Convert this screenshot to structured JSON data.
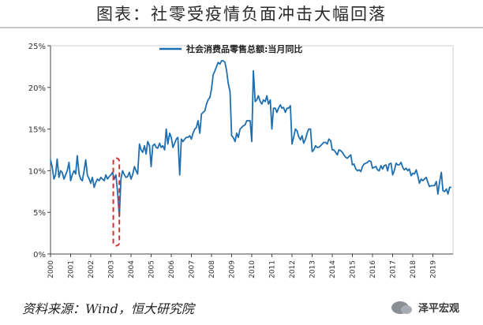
{
  "title": "图表：社零受疫情负面冲击大幅回落",
  "source": "资料来源：Wind，恒大研究院",
  "watermark": "泽平宏观",
  "colors": {
    "series": "#1f6fb0",
    "highlight": "#d0312d",
    "axis": "#444444"
  },
  "chart_data": {
    "type": "line",
    "title": "",
    "xlabel": "",
    "ylabel": "",
    "xlim": [
      2000,
      2020
    ],
    "ylim": [
      0,
      0.25
    ],
    "yticks": [
      0,
      0.05,
      0.1,
      0.15,
      0.2,
      0.25
    ],
    "ytick_labels": [
      "0%",
      "5%",
      "10%",
      "15%",
      "20%",
      "25%"
    ],
    "xticks": [
      2000,
      2001,
      2002,
      2003,
      2004,
      2005,
      2006,
      2007,
      2008,
      2009,
      2010,
      2011,
      2012,
      2013,
      2014,
      2015,
      2016,
      2017,
      2018,
      2019
    ],
    "xtick_labels": [
      "2000",
      "2001",
      "2002",
      "2003",
      "2004",
      "2005",
      "2006",
      "2007",
      "2008",
      "2009",
      "2010",
      "2011",
      "2012",
      "2013",
      "2014",
      "2015",
      "2016",
      "2017",
      "2018",
      "2019"
    ],
    "grid": false,
    "legend": "top-center",
    "highlight_box": {
      "x0": 2003.12,
      "x1": 2003.42,
      "y0": 0.01,
      "y1": 0.115
    },
    "series": [
      {
        "name": "社会消费品零售总额:当月同比",
        "x": [
          2000.0,
          2000.08,
          2000.17,
          2000.25,
          2000.33,
          2000.42,
          2000.5,
          2000.58,
          2000.67,
          2000.75,
          2000.83,
          2000.92,
          2001.0,
          2001.08,
          2001.17,
          2001.25,
          2001.33,
          2001.42,
          2001.5,
          2001.58,
          2001.67,
          2001.75,
          2001.83,
          2001.92,
          2002.0,
          2002.08,
          2002.17,
          2002.25,
          2002.33,
          2002.42,
          2002.5,
          2002.58,
          2002.67,
          2002.75,
          2002.83,
          2002.92,
          2003.0,
          2003.08,
          2003.17,
          2003.25,
          2003.33,
          2003.42,
          2003.5,
          2003.58,
          2003.67,
          2003.75,
          2003.83,
          2003.92,
          2004.0,
          2004.08,
          2004.17,
          2004.25,
          2004.33,
          2004.42,
          2004.5,
          2004.58,
          2004.67,
          2004.75,
          2004.83,
          2004.92,
          2005.0,
          2005.08,
          2005.17,
          2005.25,
          2005.33,
          2005.42,
          2005.5,
          2005.58,
          2005.67,
          2005.75,
          2005.83,
          2005.92,
          2006.0,
          2006.08,
          2006.17,
          2006.25,
          2006.33,
          2006.42,
          2006.5,
          2006.58,
          2006.67,
          2006.75,
          2006.83,
          2006.92,
          2007.0,
          2007.08,
          2007.17,
          2007.25,
          2007.33,
          2007.42,
          2007.5,
          2007.58,
          2007.67,
          2007.75,
          2007.83,
          2007.92,
          2008.0,
          2008.08,
          2008.17,
          2008.25,
          2008.33,
          2008.42,
          2008.5,
          2008.58,
          2008.67,
          2008.75,
          2008.83,
          2008.92,
          2009.0,
          2009.08,
          2009.17,
          2009.25,
          2009.33,
          2009.42,
          2009.5,
          2009.58,
          2009.67,
          2009.75,
          2009.83,
          2009.92,
          2010.0,
          2010.08,
          2010.17,
          2010.25,
          2010.33,
          2010.42,
          2010.5,
          2010.58,
          2010.67,
          2010.75,
          2010.83,
          2010.92,
          2011.0,
          2011.08,
          2011.17,
          2011.25,
          2011.33,
          2011.42,
          2011.5,
          2011.58,
          2011.67,
          2011.75,
          2011.83,
          2011.92,
          2012.0,
          2012.08,
          2012.17,
          2012.25,
          2012.33,
          2012.42,
          2012.5,
          2012.58,
          2012.67,
          2012.75,
          2012.83,
          2012.92,
          2013.0,
          2013.08,
          2013.17,
          2013.25,
          2013.33,
          2013.42,
          2013.5,
          2013.58,
          2013.67,
          2013.75,
          2013.83,
          2013.92,
          2014.0,
          2014.08,
          2014.17,
          2014.25,
          2014.33,
          2014.42,
          2014.5,
          2014.58,
          2014.67,
          2014.75,
          2014.83,
          2014.92,
          2015.0,
          2015.08,
          2015.17,
          2015.25,
          2015.33,
          2015.42,
          2015.5,
          2015.58,
          2015.67,
          2015.75,
          2015.83,
          2015.92,
          2016.0,
          2016.08,
          2016.17,
          2016.25,
          2016.33,
          2016.42,
          2016.5,
          2016.58,
          2016.67,
          2016.75,
          2016.83,
          2016.92,
          2017.0,
          2017.08,
          2017.17,
          2017.25,
          2017.33,
          2017.42,
          2017.5,
          2017.58,
          2017.67,
          2017.75,
          2017.83,
          2017.92,
          2018.0,
          2018.08,
          2018.17,
          2018.25,
          2018.33,
          2018.42,
          2018.5,
          2018.58,
          2018.67,
          2018.75,
          2018.83,
          2018.92,
          2019.0,
          2019.08,
          2019.17,
          2019.25,
          2019.33,
          2019.42,
          2019.5,
          2019.58,
          2019.67,
          2019.75,
          2019.83,
          2019.92
        ],
        "values": [
          0.113,
          0.105,
          0.09,
          0.095,
          0.114,
          0.092,
          0.1,
          0.098,
          0.09,
          0.095,
          0.1,
          0.11,
          0.088,
          0.095,
          0.1,
          0.096,
          0.118,
          0.096,
          0.09,
          0.088,
          0.1,
          0.113,
          0.095,
          0.09,
          0.085,
          0.092,
          0.08,
          0.086,
          0.09,
          0.088,
          0.092,
          0.09,
          0.088,
          0.095,
          0.09,
          0.093,
          0.095,
          0.098,
          0.09,
          0.095,
          0.075,
          0.045,
          0.09,
          0.1,
          0.095,
          0.092,
          0.093,
          0.098,
          0.09,
          0.095,
          0.105,
          0.1,
          0.096,
          0.132,
          0.125,
          0.122,
          0.13,
          0.12,
          0.135,
          0.13,
          0.105,
          0.13,
          0.132,
          0.128,
          0.127,
          0.133,
          0.128,
          0.13,
          0.125,
          0.15,
          0.132,
          0.145,
          0.14,
          0.128,
          0.133,
          0.138,
          0.14,
          0.095,
          0.138,
          0.135,
          0.138,
          0.14,
          0.14,
          0.142,
          0.138,
          0.145,
          0.15,
          0.152,
          0.16,
          0.145,
          0.168,
          0.17,
          0.172,
          0.18,
          0.185,
          0.188,
          0.198,
          0.215,
          0.22,
          0.225,
          0.23,
          0.228,
          0.232,
          0.232,
          0.23,
          0.22,
          0.205,
          0.195,
          0.142,
          0.14,
          0.135,
          0.145,
          0.14,
          0.15,
          0.152,
          0.154,
          0.155,
          0.16,
          0.16,
          0.16,
          0.135,
          0.22,
          0.183,
          0.185,
          0.19,
          0.183,
          0.18,
          0.185,
          0.183,
          0.19,
          0.18,
          0.185,
          0.15,
          0.175,
          0.175,
          0.17,
          0.175,
          0.179,
          0.175,
          0.176,
          0.17,
          0.175,
          0.175,
          0.178,
          0.132,
          0.14,
          0.15,
          0.148,
          0.141,
          0.137,
          0.142,
          0.133,
          0.138,
          0.145,
          0.15,
          0.15,
          0.123,
          0.125,
          0.13,
          0.128,
          0.128,
          0.13,
          0.132,
          0.134,
          0.134,
          0.132,
          0.138,
          0.136,
          0.125,
          0.125,
          0.122,
          0.119,
          0.125,
          0.124,
          0.122,
          0.119,
          0.116,
          0.115,
          0.117,
          0.119,
          0.107,
          0.108,
          0.102,
          0.1,
          0.101,
          0.099,
          0.105,
          0.108,
          0.109,
          0.11,
          0.112,
          0.111,
          0.103,
          0.104,
          0.105,
          0.101,
          0.1,
          0.106,
          0.102,
          0.106,
          0.107,
          0.1,
          0.108,
          0.109,
          0.095,
          0.1,
          0.109,
          0.107,
          0.107,
          0.11,
          0.104,
          0.101,
          0.103,
          0.1,
          0.102,
          0.094,
          0.097,
          0.096,
          0.101,
          0.094,
          0.085,
          0.09,
          0.088,
          0.09,
          0.092,
          0.086,
          0.081,
          0.082,
          0.082,
          0.082,
          0.087,
          0.072,
          0.086,
          0.098,
          0.076,
          0.075,
          0.078,
          0.072,
          0.08,
          0.08
        ]
      }
    ]
  }
}
